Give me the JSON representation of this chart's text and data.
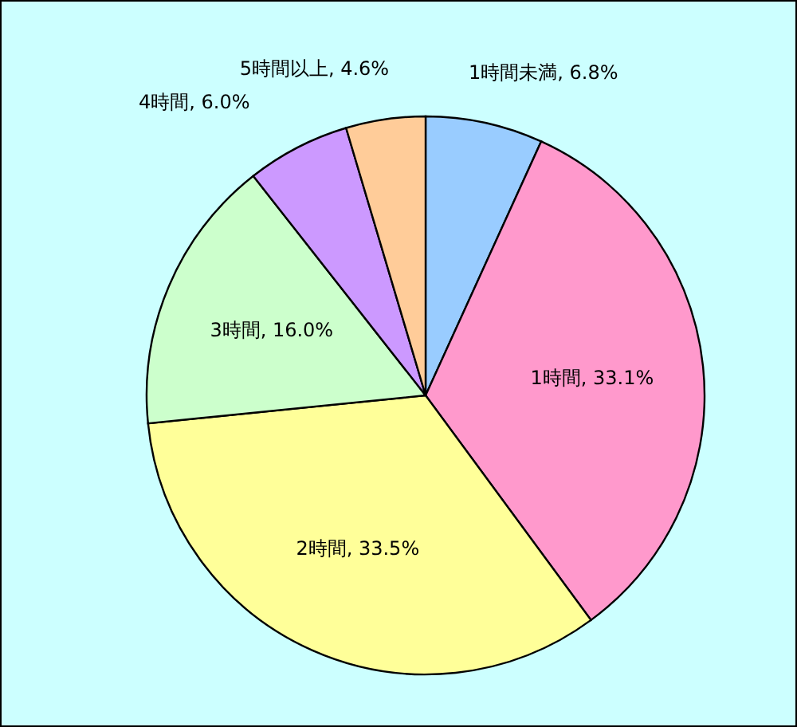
{
  "chart_data": {
    "type": "pie",
    "categories": [
      "1時間未満",
      "1時間",
      "2時間",
      "3時間",
      "4時間",
      "5時間以上"
    ],
    "values": [
      6.8,
      33.1,
      33.5,
      16.0,
      6.0,
      4.6
    ],
    "value_labels": [
      "6.8%",
      "33.1%",
      "33.5%",
      "16.0%",
      "6.0%",
      "4.6%"
    ],
    "colors": [
      "#99ccff",
      "#ff99cc",
      "#ffff99",
      "#ccffcc",
      "#cc99ff",
      "#ffcc99"
    ]
  }
}
